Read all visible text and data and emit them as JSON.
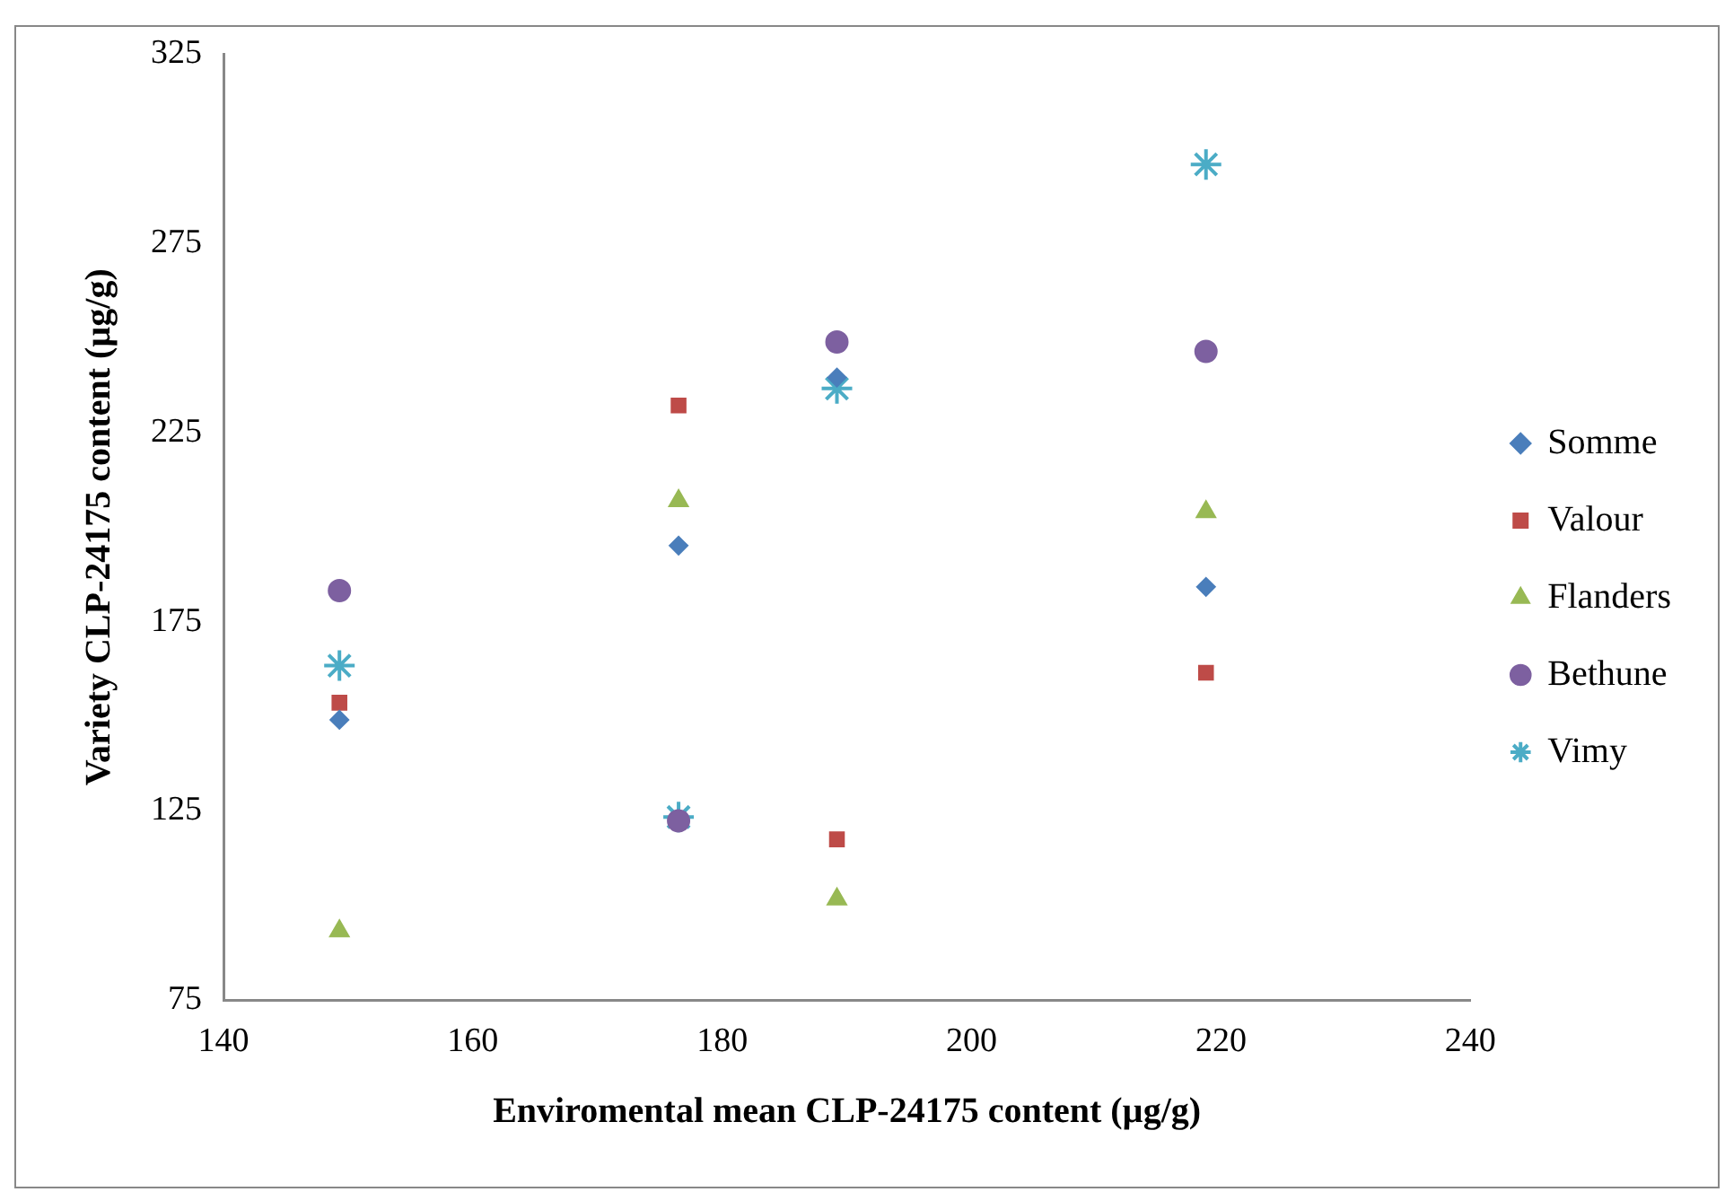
{
  "chart_data": {
    "type": "scatter",
    "xlabel": "Enviromental mean CLP-24175 content (µg/g)",
    "ylabel": "Variety CLP-24175 content (µg/g)",
    "xlim": [
      140,
      240
    ],
    "xticks": [
      140,
      160,
      180,
      200,
      220,
      240
    ],
    "ylim": [
      75,
      325
    ],
    "yticks": [
      75,
      125,
      175,
      225,
      275,
      325
    ],
    "grid": false,
    "legend": "right",
    "x": [
      149.3,
      176.5,
      189.2,
      218.8
    ],
    "series": [
      {
        "name": "Somme",
        "color": "#4a7ebb",
        "marker": "diamond",
        "values": [
          149.1,
          195.1,
          239.5,
          184.2
        ]
      },
      {
        "name": "Valour",
        "color": "#be4b48",
        "marker": "square",
        "values": [
          153.6,
          232.1,
          117.5,
          161.5
        ]
      },
      {
        "name": "Flanders",
        "color": "#98b954",
        "marker": "triangle",
        "values": [
          93.3,
          206.9,
          101.7,
          204
        ]
      },
      {
        "name": "Bethune",
        "color": "#7d60a0",
        "marker": "circle",
        "values": [
          183.2,
          122.4,
          248.9,
          246.4
        ]
      },
      {
        "name": "Vimy",
        "color": "#4bacc6",
        "marker": "cross",
        "values": [
          163.4,
          123.4,
          236.6,
          295.8
        ]
      }
    ]
  }
}
